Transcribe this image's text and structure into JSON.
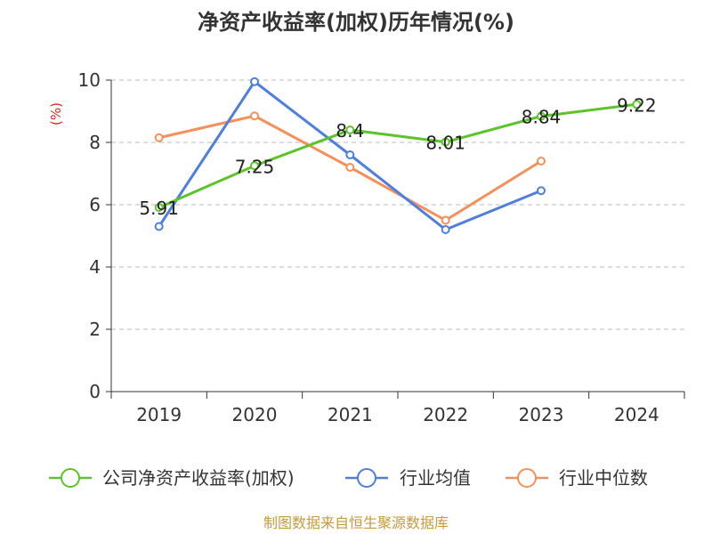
{
  "chart_data": {
    "type": "line",
    "title": "净资产收益率(加权)历年情况(%)",
    "ylabel": "(%)",
    "xlabel": "",
    "categories": [
      "2019",
      "2020",
      "2021",
      "2022",
      "2023",
      "2024"
    ],
    "ylim": [
      0,
      10
    ],
    "yticks": [
      0,
      2,
      4,
      6,
      8,
      10
    ],
    "grid": true,
    "legend_position": "bottom",
    "series": [
      {
        "name": "公司净资产收益率(加权)",
        "color": "#5ac428",
        "values": [
          5.91,
          7.25,
          8.4,
          8.01,
          8.84,
          9.22
        ],
        "labels": [
          "5.91",
          "7.25",
          "8.4",
          "8.01",
          "8.84",
          "9.22"
        ]
      },
      {
        "name": "行业均值",
        "color": "#4f7fdc",
        "values": [
          5.3,
          9.95,
          7.6,
          5.2,
          6.45,
          null
        ]
      },
      {
        "name": "行业中位数",
        "color": "#f5905a",
        "values": [
          8.15,
          8.85,
          7.2,
          5.5,
          7.4,
          null
        ]
      }
    ]
  },
  "footer": {
    "source": "制图数据来自恒生聚源数据库",
    "source_color": "#c79a3a"
  },
  "colors": {
    "unit_label": "#d02a1a",
    "grid": "#bbbbbb",
    "axis": "#333333"
  }
}
